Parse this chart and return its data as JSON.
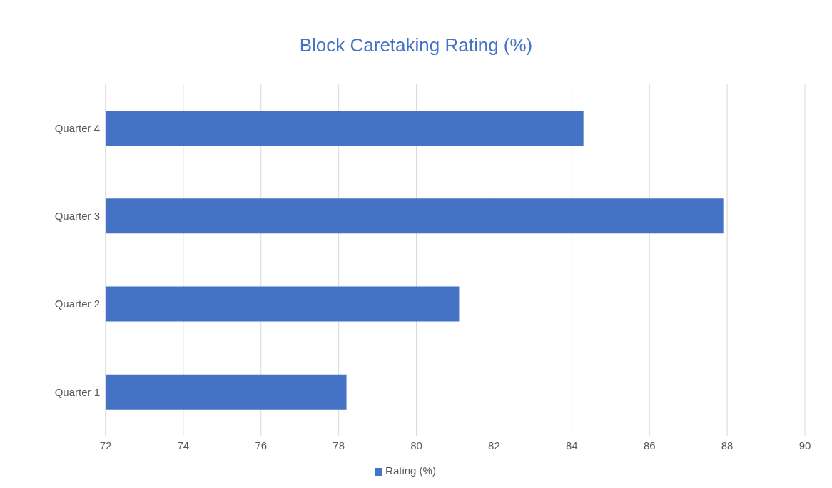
{
  "chart_data": {
    "type": "bar",
    "orientation": "horizontal",
    "title": "Block Caretaking Rating (%)",
    "categories": [
      "Quarter 4",
      "Quarter 3",
      "Quarter 2",
      "Quarter 1"
    ],
    "series": [
      {
        "name": "Rating (%)",
        "color": "#4472c4",
        "values": [
          84.3,
          87.9,
          81.1,
          78.2
        ]
      }
    ],
    "xlim": [
      72,
      90
    ],
    "xticks": [
      72,
      74,
      76,
      78,
      80,
      82,
      84,
      86,
      88,
      90
    ],
    "grid": "x",
    "legend": "bottom"
  }
}
